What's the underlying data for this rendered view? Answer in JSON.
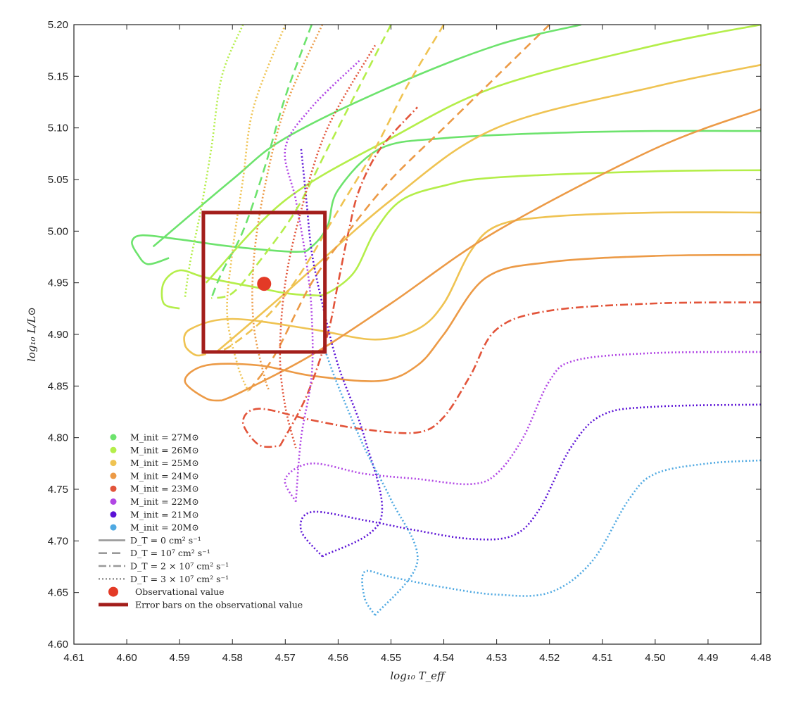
{
  "chart_data": {
    "type": "line",
    "title": "",
    "xlabel": "log₁₀ T_eff",
    "ylabel": "log₁₀ L/L⊙",
    "xlim": [
      4.61,
      4.48
    ],
    "ylim": [
      4.6,
      5.2
    ],
    "x_reversed": true,
    "grid": false,
    "legend_placement": "lower-left",
    "x_ticks": [
      "4.61",
      "4.60",
      "4.59",
      "4.58",
      "4.57",
      "4.56",
      "4.55",
      "4.54",
      "4.53",
      "4.52",
      "4.51",
      "4.50",
      "4.49",
      "4.48"
    ],
    "y_ticks": [
      "4.60",
      "4.65",
      "4.70",
      "4.75",
      "4.80",
      "4.85",
      "4.90",
      "4.95",
      "5.00",
      "5.05",
      "5.10",
      "5.15",
      "5.20"
    ],
    "legend_masses": [
      {
        "label": "M_init = 27M⊙",
        "color": "#6de36d"
      },
      {
        "label": "M_init = 26M⊙",
        "color": "#b4ee4a"
      },
      {
        "label": "M_init = 25M⊙",
        "color": "#efc352"
      },
      {
        "label": "M_init = 24M⊙",
        "color": "#ec9a46"
      },
      {
        "label": "M_init = 23M⊙",
        "color": "#e2543a"
      },
      {
        "label": "M_init = 22M⊙",
        "color": "#b146e4"
      },
      {
        "label": "M_init = 21M⊙",
        "color": "#5b12d6"
      },
      {
        "label": "M_init = 20M⊙",
        "color": "#4fa9e2"
      }
    ],
    "legend_styles": [
      {
        "label": "D_T = 0 cm² s⁻¹",
        "dash": "solid"
      },
      {
        "label": "D_T = 10⁷ cm² s⁻¹",
        "dash": "dashed"
      },
      {
        "label": "D_T = 2 × 10⁷ cm² s⁻¹",
        "dash": "dashdot"
      },
      {
        "label": "D_T = 3 × 10⁷ cm² s⁻¹",
        "dash": "dotted"
      }
    ],
    "legend_markers": [
      {
        "label": "Observational value",
        "kind": "dot",
        "color": "#e33a26"
      },
      {
        "label": "Error bars on the observational value",
        "kind": "bar",
        "color": "#a31e1b"
      }
    ],
    "observation": {
      "x": 4.574,
      "y": 4.949,
      "color": "#e33a26"
    },
    "error_box": {
      "x_min": 4.5625,
      "x_max": 4.5855,
      "y_min": 4.883,
      "y_max": 5.018,
      "color": "#a31e1b"
    },
    "series": [
      {
        "mass": 27,
        "dash": "solid",
        "color": "#6de36d",
        "x": [
          4.48,
          4.5,
          4.52,
          4.54,
          4.552,
          4.56,
          4.562,
          4.565,
          4.568,
          4.58,
          4.59,
          4.597,
          4.599,
          4.598,
          4.596,
          4.592
        ],
        "y": [
          5.097,
          5.097,
          5.095,
          5.09,
          5.08,
          5.04,
          5.005,
          4.985,
          4.98,
          4.985,
          4.992,
          4.996,
          4.99,
          4.978,
          4.968,
          4.974
        ]
      },
      {
        "mass": 27,
        "dash": "solid",
        "color": "#6de36d",
        "x": [
          4.514,
          4.53,
          4.55,
          4.57,
          4.58,
          4.595
        ],
        "y": [
          5.2,
          5.18,
          5.14,
          5.09,
          5.05,
          4.985
        ]
      },
      {
        "mass": 26,
        "dash": "solid",
        "color": "#b4ee4a",
        "x": [
          4.48,
          4.5,
          4.53,
          4.54,
          4.548,
          4.553,
          4.557,
          4.562,
          4.565,
          4.57,
          4.575,
          4.585,
          4.59,
          4.593,
          4.593,
          4.59
        ],
        "y": [
          5.059,
          5.058,
          5.052,
          5.044,
          5.03,
          5.0,
          4.96,
          4.94,
          4.938,
          4.94,
          4.945,
          4.955,
          4.962,
          4.95,
          4.93,
          4.925
        ]
      },
      {
        "mass": 26,
        "dash": "solid",
        "color": "#b4ee4a",
        "x": [
          4.48,
          4.5,
          4.53,
          4.55,
          4.57,
          4.585
        ],
        "y": [
          5.2,
          5.18,
          5.14,
          5.09,
          5.03,
          4.95
        ]
      },
      {
        "mass": 25,
        "dash": "solid",
        "color": "#efc352",
        "x": [
          4.48,
          4.5,
          4.52,
          4.53,
          4.535,
          4.54,
          4.545,
          4.553,
          4.565,
          4.58,
          4.588,
          4.589,
          4.587,
          4.585
        ],
        "y": [
          5.018,
          5.018,
          5.014,
          5.005,
          4.98,
          4.93,
          4.905,
          4.895,
          4.905,
          4.915,
          4.905,
          4.89,
          4.88,
          4.881
        ]
      },
      {
        "mass": 25,
        "dash": "solid",
        "color": "#efc352",
        "x": [
          4.48,
          4.5,
          4.53,
          4.55,
          4.57,
          4.583
        ],
        "y": [
          5.161,
          5.14,
          5.1,
          5.03,
          4.94,
          4.883
        ]
      },
      {
        "mass": 24,
        "dash": "solid",
        "color": "#ec9a46",
        "x": [
          4.48,
          4.5,
          4.52,
          4.532,
          4.54,
          4.545,
          4.552,
          4.565,
          4.575,
          4.585,
          4.589,
          4.585,
          4.582
        ],
        "y": [
          4.977,
          4.976,
          4.97,
          4.955,
          4.9,
          4.87,
          4.855,
          4.86,
          4.87,
          4.87,
          4.855,
          4.838,
          4.836
        ]
      },
      {
        "mass": 24,
        "dash": "solid",
        "color": "#ec9a46",
        "x": [
          4.48,
          4.5,
          4.53,
          4.55,
          4.565,
          4.578,
          4.582
        ],
        "y": [
          5.118,
          5.08,
          5.0,
          4.93,
          4.88,
          4.845,
          4.836
        ]
      },
      {
        "mass": 23,
        "dash": "dashdot",
        "color": "#e2543a",
        "x": [
          4.48,
          4.5,
          4.52,
          4.53,
          4.535,
          4.54,
          4.545,
          4.555,
          4.565,
          4.575,
          4.578,
          4.575,
          4.571
        ],
        "y": [
          4.931,
          4.93,
          4.923,
          4.905,
          4.86,
          4.82,
          4.805,
          4.808,
          4.817,
          4.828,
          4.815,
          4.793,
          4.792
        ]
      },
      {
        "mass": 23,
        "dash": "dashdot",
        "color": "#e2543a",
        "x": [
          4.571,
          4.566,
          4.562,
          4.56,
          4.558,
          4.556,
          4.552,
          4.545
        ],
        "y": [
          4.792,
          4.84,
          4.9,
          4.95,
          5.0,
          5.04,
          5.08,
          5.12
        ]
      },
      {
        "mass": 22,
        "dash": "dotted",
        "color": "#b146e4",
        "x": [
          4.48,
          4.5,
          4.515,
          4.52,
          4.525,
          4.53,
          4.535,
          4.545,
          4.555,
          4.565,
          4.57,
          4.568
        ],
        "y": [
          4.883,
          4.882,
          4.875,
          4.855,
          4.8,
          4.765,
          4.755,
          4.76,
          4.765,
          4.775,
          4.76,
          4.738
        ]
      },
      {
        "mass": 22,
        "dash": "dotted",
        "color": "#b146e4",
        "x": [
          4.568,
          4.567,
          4.565,
          4.565,
          4.566,
          4.568,
          4.57,
          4.565,
          4.556
        ],
        "y": [
          4.738,
          4.8,
          4.86,
          4.92,
          4.97,
          5.03,
          5.08,
          5.12,
          5.165
        ]
      },
      {
        "mass": 21,
        "dash": "dotted",
        "color": "#5b12d6",
        "x": [
          4.48,
          4.5,
          4.51,
          4.516,
          4.522,
          4.527,
          4.535,
          4.545,
          4.555,
          4.565,
          4.567,
          4.563
        ],
        "y": [
          4.832,
          4.83,
          4.822,
          4.79,
          4.73,
          4.705,
          4.702,
          4.71,
          4.72,
          4.728,
          4.71,
          4.685
        ]
      },
      {
        "mass": 21,
        "dash": "dotted",
        "color": "#5b12d6",
        "x": [
          4.563,
          4.552,
          4.555,
          4.56,
          4.563,
          4.565,
          4.566,
          4.567
        ],
        "y": [
          4.685,
          4.72,
          4.8,
          4.87,
          4.93,
          4.98,
          5.03,
          5.08
        ]
      },
      {
        "mass": 20,
        "dash": "dotted",
        "color": "#4fa9e2",
        "x": [
          4.48,
          4.49,
          4.5,
          4.505,
          4.512,
          4.52,
          4.53,
          4.54,
          4.55,
          4.555,
          4.555,
          4.553
        ],
        "y": [
          4.778,
          4.775,
          4.765,
          4.74,
          4.68,
          4.65,
          4.648,
          4.655,
          4.665,
          4.67,
          4.645,
          4.628
        ]
      },
      {
        "mass": 20,
        "dash": "dotted",
        "color": "#4fa9e2",
        "x": [
          4.553,
          4.545,
          4.55,
          4.555,
          4.56,
          4.5625
        ],
        "y": [
          4.628,
          4.68,
          4.74,
          4.79,
          4.85,
          4.885
        ]
      },
      {
        "mass": 27,
        "dash": "dashed",
        "color": "#6de36d",
        "x": [
          4.565,
          4.57,
          4.574,
          4.578,
          4.582,
          4.584
        ],
        "y": [
          5.2,
          5.13,
          5.06,
          5.0,
          4.96,
          4.935
        ]
      },
      {
        "mass": 26,
        "dash": "dashed",
        "color": "#b4ee4a",
        "x": [
          4.55,
          4.556,
          4.562,
          4.568,
          4.575,
          4.58,
          4.584
        ],
        "y": [
          5.2,
          5.14,
          5.08,
          5.02,
          4.97,
          4.94,
          4.935
        ]
      },
      {
        "mass": 25,
        "dash": "dashed",
        "color": "#efc352",
        "x": [
          4.54,
          4.547,
          4.553,
          4.56,
          4.567,
          4.573,
          4.58,
          4.583
        ],
        "y": [
          5.2,
          5.14,
          5.08,
          5.02,
          4.96,
          4.92,
          4.89,
          4.883
        ]
      },
      {
        "mass": 24,
        "dash": "dashed",
        "color": "#ec9a46",
        "x": [
          4.52,
          4.53,
          4.54,
          4.55,
          4.558,
          4.565,
          4.572,
          4.577
        ],
        "y": [
          5.2,
          5.15,
          5.1,
          5.05,
          5.0,
          4.95,
          4.88,
          4.845
        ]
      },
      {
        "mass": 26,
        "dash": "dotted",
        "color": "#b4ee4a",
        "x": [
          4.578,
          4.582,
          4.584,
          4.586,
          4.588,
          4.589
        ],
        "y": [
          5.2,
          5.15,
          5.08,
          5.02,
          4.97,
          4.935
        ]
      },
      {
        "mass": 25,
        "dash": "dotted",
        "color": "#efc352",
        "x": [
          4.57,
          4.576,
          4.578,
          4.58,
          4.581,
          4.579,
          4.577
        ],
        "y": [
          5.2,
          5.12,
          5.05,
          4.98,
          4.92,
          4.87,
          4.845
        ]
      },
      {
        "mass": 24,
        "dash": "dotted",
        "color": "#ec9a46",
        "x": [
          4.563,
          4.57,
          4.574,
          4.576,
          4.576,
          4.574,
          4.573
        ],
        "y": [
          5.2,
          5.12,
          5.04,
          4.97,
          4.91,
          4.86,
          4.845
        ]
      },
      {
        "mass": 23,
        "dash": "dotted",
        "color": "#e2543a",
        "x": [
          4.553,
          4.562,
          4.567,
          4.57,
          4.571,
          4.57,
          4.568
        ],
        "y": [
          5.18,
          5.1,
          5.02,
          4.95,
          4.88,
          4.83,
          4.79
        ]
      }
    ]
  }
}
